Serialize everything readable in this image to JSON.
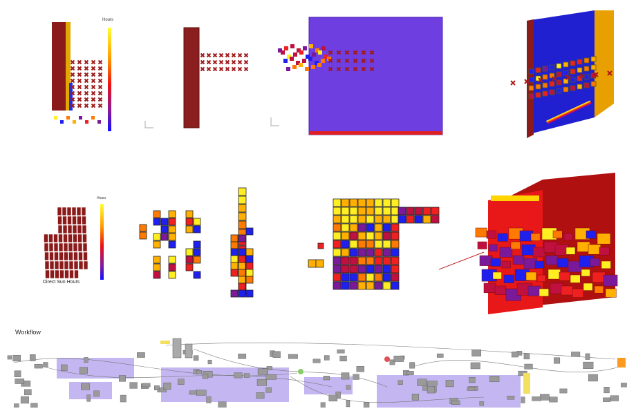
{
  "legend_title": "Hours",
  "sun_hours_label": "Direct Sun Hours",
  "workflow_label": "Workflow"
}
